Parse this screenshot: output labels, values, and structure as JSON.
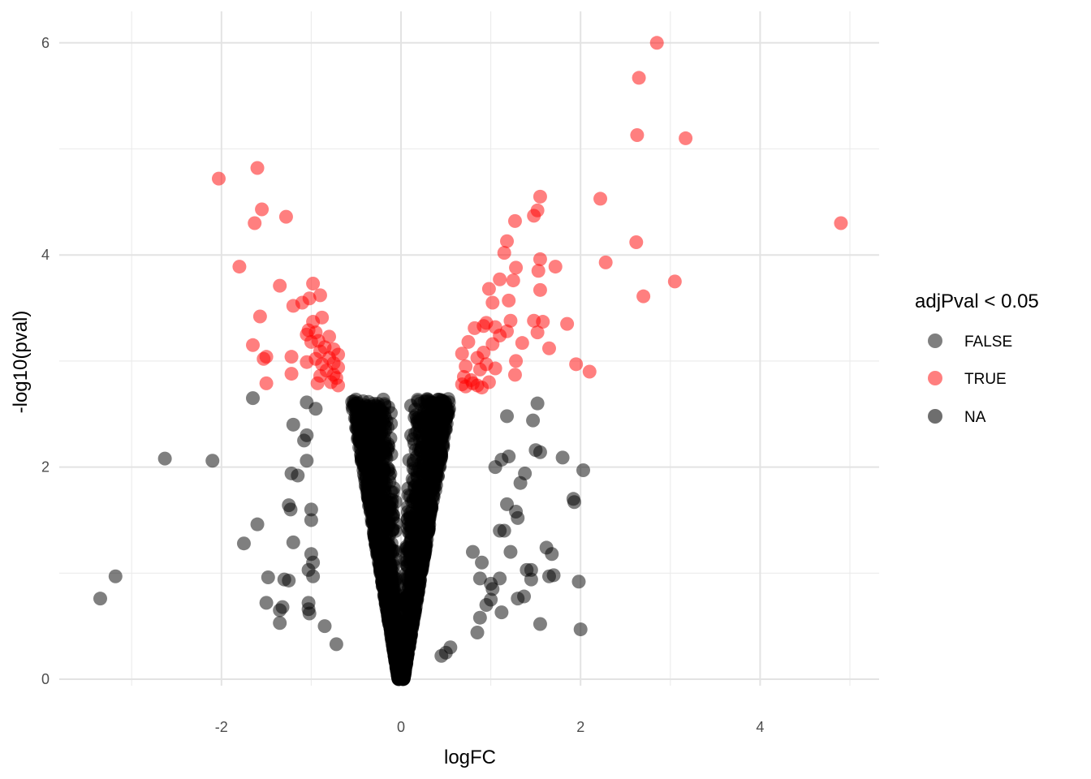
{
  "chart_data": {
    "type": "scatter",
    "xlabel": "logFC",
    "ylabel": "-log10(pval)",
    "xlim": [
      -3.9,
      5.3
    ],
    "ylim": [
      -0.05,
      6.25
    ],
    "x_ticks": [
      -2,
      0,
      2,
      4
    ],
    "x_tick_labels": [
      "-2",
      "0",
      "2",
      "4"
    ],
    "y_ticks": [
      0,
      2,
      4,
      6
    ],
    "y_tick_labels": [
      "0",
      "2",
      "4",
      "6"
    ],
    "grid": true,
    "legend": {
      "title": "adjPval < 0.05",
      "placement": "right",
      "entries": [
        {
          "label": "FALSE",
          "color": "#000000"
        },
        {
          "label": "TRUE",
          "color": "#ff0000"
        },
        {
          "label": "NA",
          "color": "#555555"
        }
      ]
    },
    "series": [
      {
        "name": "TRUE",
        "color": "#ff0000",
        "points": [
          [
            2.85,
            6.0
          ],
          [
            2.65,
            5.67
          ],
          [
            2.63,
            5.13
          ],
          [
            3.17,
            5.1
          ],
          [
            4.9,
            4.3
          ],
          [
            2.22,
            4.53
          ],
          [
            1.55,
            4.55
          ],
          [
            1.52,
            4.42
          ],
          [
            1.48,
            4.37
          ],
          [
            1.27,
            4.32
          ],
          [
            1.18,
            4.13
          ],
          [
            2.62,
            4.12
          ],
          [
            1.15,
            4.02
          ],
          [
            1.55,
            3.96
          ],
          [
            2.28,
            3.93
          ],
          [
            1.72,
            3.89
          ],
          [
            1.28,
            3.88
          ],
          [
            1.53,
            3.85
          ],
          [
            3.05,
            3.75
          ],
          [
            1.1,
            3.77
          ],
          [
            1.25,
            3.76
          ],
          [
            2.7,
            3.61
          ],
          [
            0.98,
            3.68
          ],
          [
            1.55,
            3.67
          ],
          [
            1.2,
            3.57
          ],
          [
            1.02,
            3.55
          ],
          [
            1.22,
            3.38
          ],
          [
            1.48,
            3.38
          ],
          [
            1.58,
            3.37
          ],
          [
            1.85,
            3.35
          ],
          [
            0.95,
            3.36
          ],
          [
            0.92,
            3.33
          ],
          [
            0.82,
            3.31
          ],
          [
            1.05,
            3.32
          ],
          [
            1.18,
            3.28
          ],
          [
            1.52,
            3.27
          ],
          [
            1.1,
            3.24
          ],
          [
            0.75,
            3.18
          ],
          [
            1.02,
            3.16
          ],
          [
            1.35,
            3.17
          ],
          [
            1.65,
            3.12
          ],
          [
            0.92,
            3.08
          ],
          [
            0.68,
            3.07
          ],
          [
            0.85,
            3.03
          ],
          [
            1.28,
            3.0
          ],
          [
            0.95,
            2.97
          ],
          [
            0.72,
            2.95
          ],
          [
            0.88,
            2.92
          ],
          [
            1.05,
            2.93
          ],
          [
            1.95,
            2.97
          ],
          [
            2.1,
            2.9
          ],
          [
            1.27,
            2.87
          ],
          [
            0.7,
            2.85
          ],
          [
            0.78,
            2.82
          ],
          [
            0.98,
            2.8
          ],
          [
            0.68,
            2.78
          ],
          [
            0.85,
            2.77
          ],
          [
            0.72,
            2.76
          ],
          [
            0.9,
            2.75
          ],
          [
            0.8,
            2.79
          ],
          [
            -1.6,
            4.82
          ],
          [
            -2.03,
            4.72
          ],
          [
            -1.55,
            4.43
          ],
          [
            -1.28,
            4.36
          ],
          [
            -1.63,
            4.3
          ],
          [
            -1.8,
            3.89
          ],
          [
            -1.35,
            3.71
          ],
          [
            -0.98,
            3.73
          ],
          [
            -0.9,
            3.62
          ],
          [
            -1.02,
            3.59
          ],
          [
            -1.1,
            3.55
          ],
          [
            -1.2,
            3.52
          ],
          [
            -1.57,
            3.42
          ],
          [
            -0.88,
            3.41
          ],
          [
            -0.98,
            3.37
          ],
          [
            -1.03,
            3.29
          ],
          [
            -0.95,
            3.27
          ],
          [
            -1.05,
            3.25
          ],
          [
            -0.8,
            3.23
          ],
          [
            -0.92,
            3.19
          ],
          [
            -1.0,
            3.18
          ],
          [
            -0.85,
            3.13
          ],
          [
            -1.65,
            3.15
          ],
          [
            -0.75,
            3.11
          ],
          [
            -0.9,
            3.09
          ],
          [
            -0.7,
            3.06
          ],
          [
            -1.5,
            3.04
          ],
          [
            -1.53,
            3.02
          ],
          [
            -1.22,
            3.04
          ],
          [
            -0.8,
            3.03
          ],
          [
            -0.95,
            3.02
          ],
          [
            -1.05,
            2.99
          ],
          [
            -0.75,
            2.98
          ],
          [
            -0.88,
            2.97
          ],
          [
            -0.7,
            2.94
          ],
          [
            -0.83,
            2.91
          ],
          [
            -1.22,
            2.88
          ],
          [
            -0.75,
            2.87
          ],
          [
            -0.9,
            2.86
          ],
          [
            -0.72,
            2.84
          ],
          [
            -1.5,
            2.79
          ],
          [
            -0.93,
            2.79
          ],
          [
            -0.78,
            2.8
          ],
          [
            -0.7,
            2.77
          ]
        ]
      },
      {
        "name": "FALSE",
        "color": "#000000",
        "points": [
          [
            -3.35,
            0.76
          ],
          [
            -3.18,
            0.97
          ],
          [
            -2.63,
            2.08
          ],
          [
            -2.1,
            2.06
          ],
          [
            -1.65,
            2.65
          ],
          [
            -1.75,
            1.28
          ],
          [
            -1.6,
            1.46
          ],
          [
            -1.48,
            0.96
          ],
          [
            -1.5,
            0.72
          ],
          [
            -1.3,
            0.94
          ],
          [
            -1.35,
            0.65
          ],
          [
            -1.32,
            0.68
          ],
          [
            -1.35,
            0.53
          ],
          [
            -1.2,
            1.29
          ],
          [
            -1.2,
            2.4
          ],
          [
            -1.22,
            1.94
          ],
          [
            -1.15,
            1.92
          ],
          [
            -1.25,
            1.64
          ],
          [
            -1.23,
            1.6
          ],
          [
            -1.05,
            2.61
          ],
          [
            -1.08,
            2.25
          ],
          [
            -1.05,
            2.06
          ],
          [
            -1.0,
            1.6
          ],
          [
            -1.0,
            1.5
          ],
          [
            -1.0,
            1.18
          ],
          [
            -0.98,
            0.97
          ],
          [
            -1.03,
            0.72
          ],
          [
            -1.02,
            0.62
          ],
          [
            -0.85,
            0.5
          ],
          [
            -0.72,
            0.33
          ],
          [
            -1.05,
            2.3
          ],
          [
            -1.03,
            1.03
          ],
          [
            -0.95,
            2.55
          ],
          [
            -0.98,
            1.1
          ],
          [
            -1.03,
            0.66
          ],
          [
            1.55,
            0.52
          ],
          [
            1.98,
            0.92
          ],
          [
            2.0,
            0.47
          ],
          [
            2.03,
            1.97
          ],
          [
            1.92,
            1.7
          ],
          [
            1.93,
            1.67
          ],
          [
            1.8,
            2.09
          ],
          [
            1.52,
            2.6
          ],
          [
            1.47,
            2.44
          ],
          [
            1.55,
            2.14
          ],
          [
            1.5,
            2.16
          ],
          [
            1.38,
            1.94
          ],
          [
            1.33,
            1.85
          ],
          [
            1.18,
            2.48
          ],
          [
            1.2,
            2.1
          ],
          [
            1.12,
            2.07
          ],
          [
            1.05,
            2.0
          ],
          [
            1.18,
            1.65
          ],
          [
            1.3,
            1.52
          ],
          [
            1.1,
            1.4
          ],
          [
            1.15,
            1.4
          ],
          [
            1.22,
            1.2
          ],
          [
            1.4,
            1.03
          ],
          [
            1.45,
            1.03
          ],
          [
            1.45,
            0.94
          ],
          [
            1.62,
            1.24
          ],
          [
            1.68,
            1.18
          ],
          [
            1.7,
            0.98
          ],
          [
            1.65,
            0.97
          ],
          [
            1.3,
            0.76
          ],
          [
            1.37,
            0.78
          ],
          [
            1.1,
            0.95
          ],
          [
            1.0,
            0.9
          ],
          [
            1.02,
            0.85
          ],
          [
            1.12,
            0.63
          ],
          [
            0.95,
            0.7
          ],
          [
            0.88,
            0.58
          ],
          [
            0.8,
            1.2
          ],
          [
            0.88,
            0.95
          ],
          [
            0.85,
            0.44
          ],
          [
            0.55,
            0.3
          ],
          [
            0.5,
            0.25
          ],
          [
            0.45,
            0.22
          ],
          [
            1.0,
            0.75
          ],
          [
            0.9,
            1.1
          ],
          [
            -1.25,
            0.93
          ],
          [
            1.28,
            1.58
          ]
        ]
      }
    ]
  }
}
